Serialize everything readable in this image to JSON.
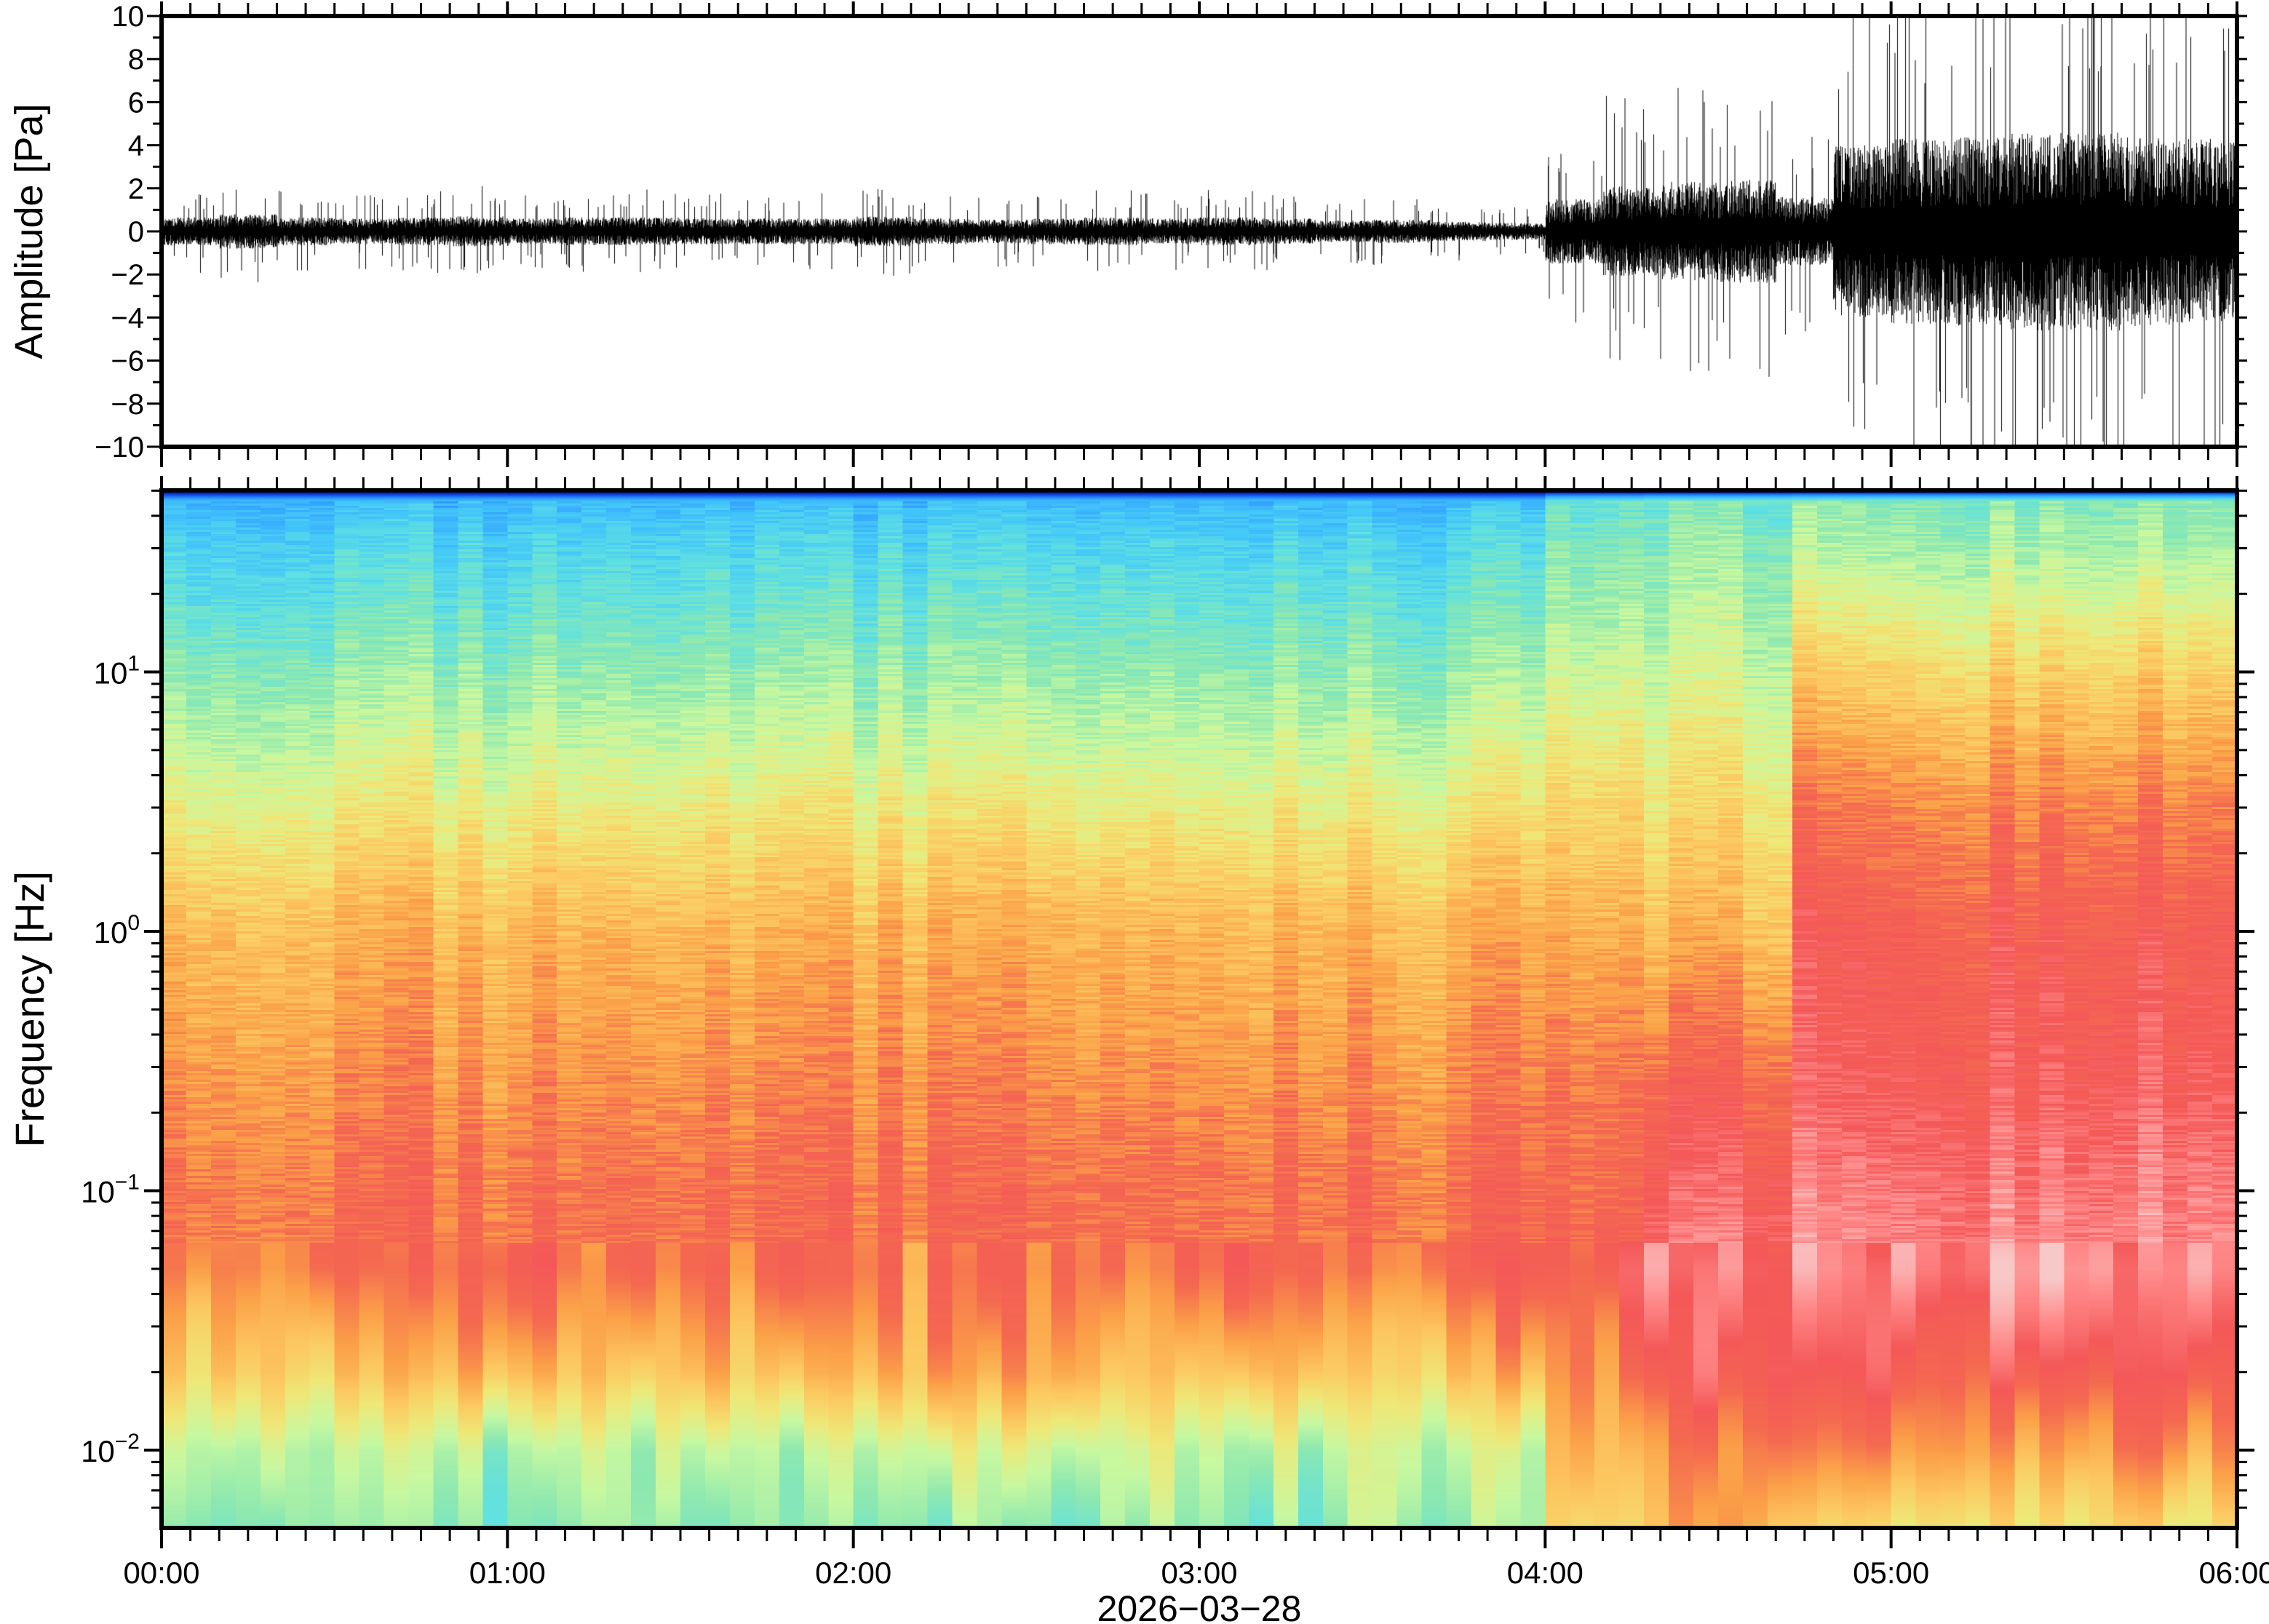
{
  "chart_data": [
    {
      "type": "line",
      "title": "",
      "ylabel": "Amplitude [Pa]",
      "xlabel": "",
      "ylim": [
        -10,
        10
      ],
      "xlim_hours": [
        0,
        6
      ],
      "yticks": [
        "10",
        "8",
        "6",
        "4",
        "2",
        "0",
        "−2",
        "−4",
        "−6",
        "−8",
        "−10"
      ],
      "ytick_values": [
        10,
        8,
        6,
        4,
        2,
        0,
        -2,
        -4,
        -6,
        -8,
        -10
      ],
      "envelope_bin_minutes": 10,
      "envelope_peak_pa": [
        1.3,
        1.6,
        1.3,
        1.2,
        1.3,
        1.4,
        1.2,
        1.3,
        1.3,
        1.2,
        1.2,
        1.2,
        1.4,
        1.2,
        1.1,
        1.2,
        1.3,
        1.2,
        1.3,
        1.2,
        1.0,
        1.1,
        0.9,
        0.8,
        3.0,
        4.2,
        4.6,
        4.8,
        3.2,
        8.0,
        8.6,
        8.8,
        9.2,
        9.2,
        8.8,
        8.6
      ],
      "color": "#000000"
    },
    {
      "type": "heatmap",
      "title": "",
      "ylabel": "Frequency [Hz]",
      "xlabel": "2026−03−28",
      "yscale": "log",
      "ylim_log10": [
        -2.3,
        1.7
      ],
      "yticks": [
        {
          "base": "10",
          "exp": "1",
          "value": 1
        },
        {
          "base": "10",
          "exp": "0",
          "value": 0
        },
        {
          "base": "10",
          "exp": "−1",
          "value": -1
        },
        {
          "base": "10",
          "exp": "−2",
          "value": -2
        }
      ],
      "xticks": [
        "00:00",
        "01:00",
        "02:00",
        "03:00",
        "04:00",
        "05:00",
        "06:00"
      ],
      "time_columns": 84,
      "regimes": [
        {
          "name": "quiet",
          "start_h": 0.0,
          "end_h": 4.03
        },
        {
          "name": "onset",
          "start_h": 4.03,
          "end_h": 4.3
        },
        {
          "name": "event1",
          "start_h": 4.3,
          "end_h": 4.72
        },
        {
          "name": "event2",
          "start_h": 4.72,
          "end_h": 6.0
        }
      ],
      "profile_log10f": [
        -2.3,
        -2.0,
        -1.7,
        -1.3,
        -1.0,
        -0.6,
        0.0,
        0.5,
        1.0,
        1.5,
        1.66,
        1.7
      ],
      "profiles_normalized_power": {
        "quiet": [
          0.44,
          0.5,
          0.66,
          0.78,
          0.78,
          0.74,
          0.68,
          0.56,
          0.44,
          0.32,
          0.26,
          0.0
        ],
        "onset": [
          0.62,
          0.68,
          0.76,
          0.82,
          0.8,
          0.78,
          0.7,
          0.62,
          0.52,
          0.42,
          0.38,
          0.0
        ],
        "event1": [
          0.7,
          0.76,
          0.86,
          0.92,
          0.88,
          0.82,
          0.68,
          0.6,
          0.52,
          0.44,
          0.4,
          0.0
        ],
        "event2": [
          0.6,
          0.74,
          0.84,
          0.93,
          0.91,
          0.86,
          0.83,
          0.75,
          0.62,
          0.46,
          0.42,
          0.0
        ]
      },
      "colormap": [
        "#0b0a7a",
        "#0a2ad0",
        "#1a70f0",
        "#36a8ff",
        "#44c8f8",
        "#60e0e0",
        "#8ce8b0",
        "#c8f8a0",
        "#eee878",
        "#fcc860",
        "#fba048",
        "#f46850",
        "#f45858",
        "#ff8888",
        "#f8c8c8"
      ]
    }
  ]
}
